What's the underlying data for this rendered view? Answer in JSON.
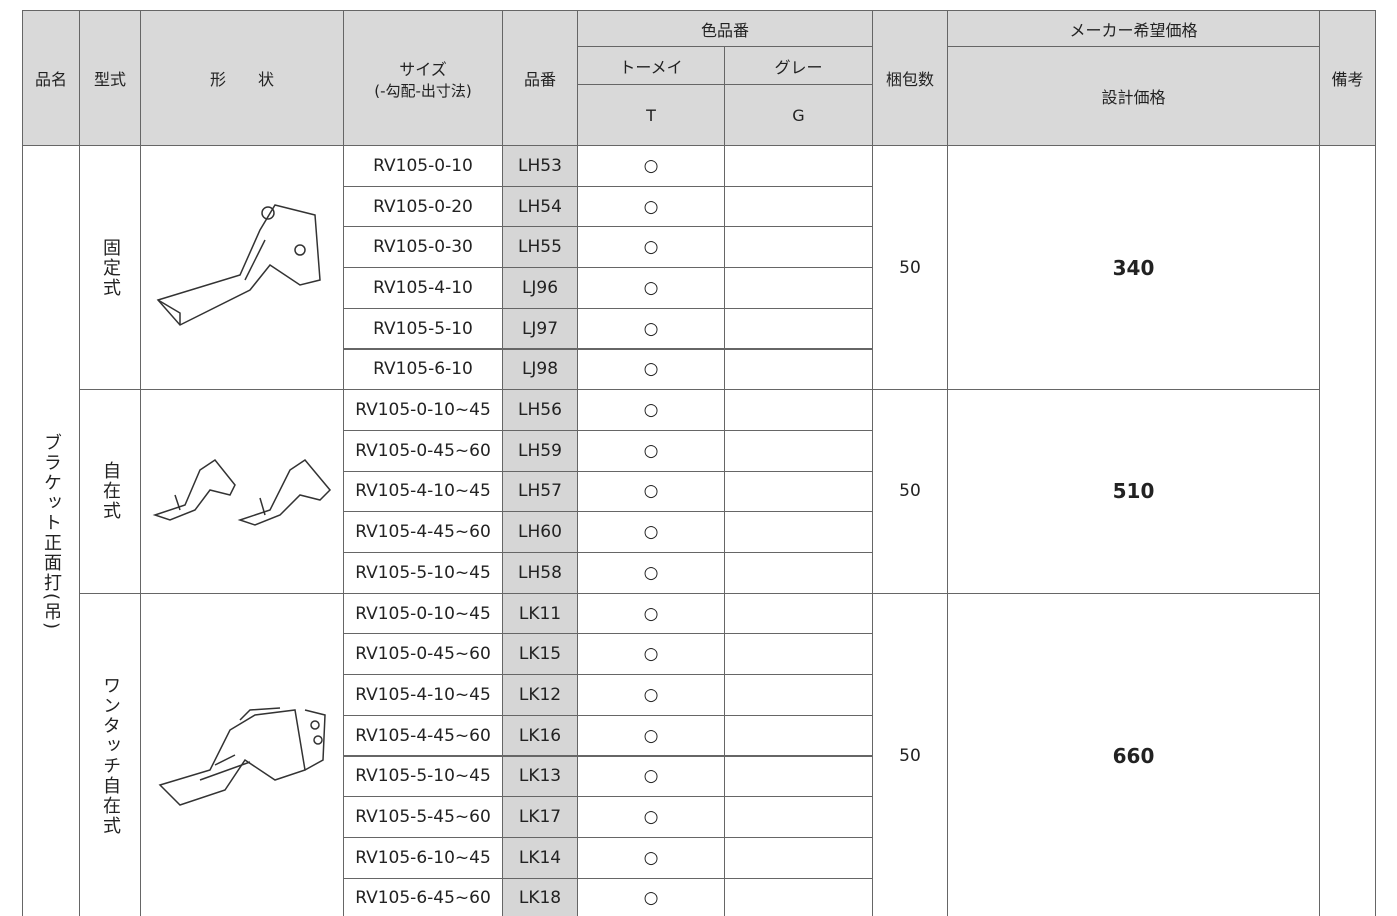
{
  "header": {
    "name": "品名",
    "type": "型式",
    "shape": "形　　状",
    "size": "サイズ",
    "size_note": "(-勾配-出寸法)",
    "code": "品番",
    "color_code": "色品番",
    "tomei": "トーメイ",
    "gray": "グレー",
    "t": "T",
    "g": "G",
    "pack": "梱包数",
    "maker_price": "メーカー希望価格",
    "design_price": "設計価格",
    "remarks": "備考"
  },
  "product_name": "ブラケット正面打(吊)",
  "groups": [
    {
      "type": "固定式",
      "pack": "50",
      "price": "340",
      "rows": [
        {
          "size": "RV105-0-10",
          "code": "LH53",
          "t": "○"
        },
        {
          "size": "RV105-0-20",
          "code": "LH54",
          "t": "○"
        },
        {
          "size": "RV105-0-30",
          "code": "LH55",
          "t": "○"
        },
        {
          "size": "RV105-4-10",
          "code": "LJ96",
          "t": "○"
        },
        {
          "size": "RV105-5-10",
          "code": "LJ97",
          "t": "○"
        },
        {
          "size": "RV105-6-10",
          "code": "LJ98",
          "t": "○"
        }
      ]
    },
    {
      "type": "自在式",
      "pack": "50",
      "price": "510",
      "rows": [
        {
          "size": "RV105-0-10~45",
          "code": "LH56",
          "t": "○"
        },
        {
          "size": "RV105-0-45~60",
          "code": "LH59",
          "t": "○"
        },
        {
          "size": "RV105-4-10~45",
          "code": "LH57",
          "t": "○"
        },
        {
          "size": "RV105-4-45~60",
          "code": "LH60",
          "t": "○"
        },
        {
          "size": "RV105-5-10~45",
          "code": "LH58",
          "t": "○"
        }
      ]
    },
    {
      "type": "ワンタッチ自在式",
      "pack": "50",
      "price": "660",
      "rows": [
        {
          "size": "RV105-0-10~45",
          "code": "LK11",
          "t": "○"
        },
        {
          "size": "RV105-0-45~60",
          "code": "LK15",
          "t": "○"
        },
        {
          "size": "RV105-4-10~45",
          "code": "LK12",
          "t": "○"
        },
        {
          "size": "RV105-4-45~60",
          "code": "LK16",
          "t": "○"
        },
        {
          "size": "RV105-5-10~45",
          "code": "LK13",
          "t": "○"
        },
        {
          "size": "RV105-5-45~60",
          "code": "LK17",
          "t": "○"
        },
        {
          "size": "RV105-6-10~45",
          "code": "LK14",
          "t": "○"
        },
        {
          "size": "RV105-6-45~60",
          "code": "LK18",
          "t": "○"
        }
      ]
    }
  ]
}
